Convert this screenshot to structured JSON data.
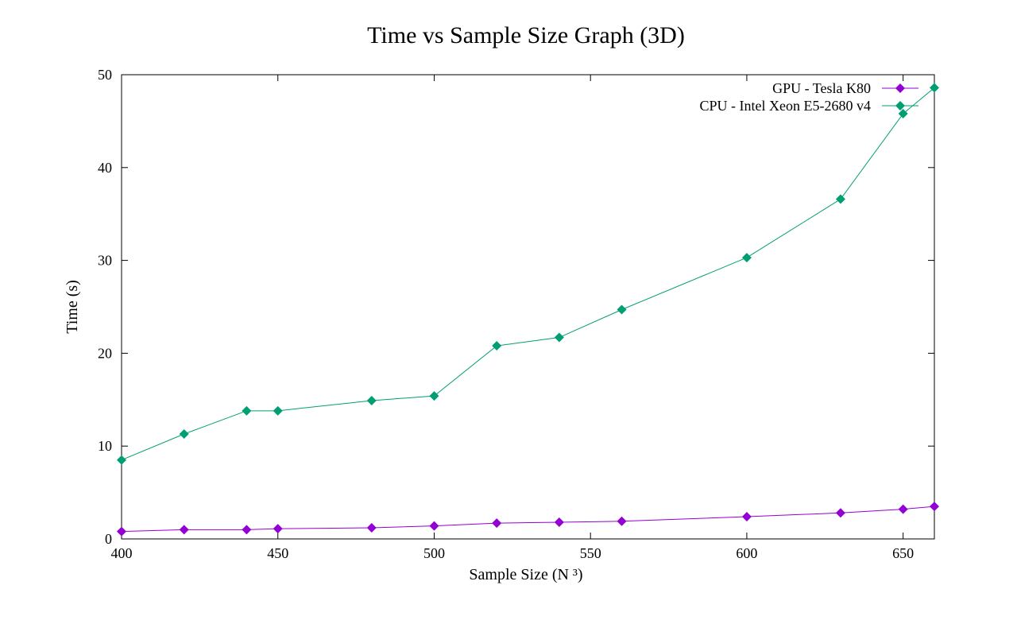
{
  "chart_data": {
    "type": "line",
    "title": "Time vs Sample Size Graph (3D)",
    "xlabel": "Sample Size (N ³)",
    "ylabel": "Time (s)",
    "xlim": [
      400,
      660
    ],
    "ylim": [
      0,
      50
    ],
    "xticks": [
      400,
      450,
      500,
      550,
      600,
      650
    ],
    "yticks": [
      0,
      10,
      20,
      30,
      40,
      50
    ],
    "grid": false,
    "legend_position": "top-right",
    "x": [
      400,
      420,
      440,
      450,
      480,
      500,
      520,
      540,
      560,
      600,
      630,
      650,
      660
    ],
    "series": [
      {
        "name": "GPU - Tesla K80",
        "color": "#9400d3",
        "marker": "diamond",
        "values": [
          0.8,
          1.0,
          1.0,
          1.1,
          1.2,
          1.4,
          1.7,
          1.8,
          1.9,
          2.4,
          2.8,
          3.2,
          3.5
        ]
      },
      {
        "name": "CPU - Intel Xeon E5-2680 v4",
        "color": "#009e73",
        "marker": "diamond",
        "values": [
          8.5,
          11.3,
          13.8,
          13.8,
          14.9,
          15.4,
          20.8,
          21.7,
          24.7,
          30.3,
          36.6,
          45.8,
          48.6
        ]
      }
    ]
  }
}
